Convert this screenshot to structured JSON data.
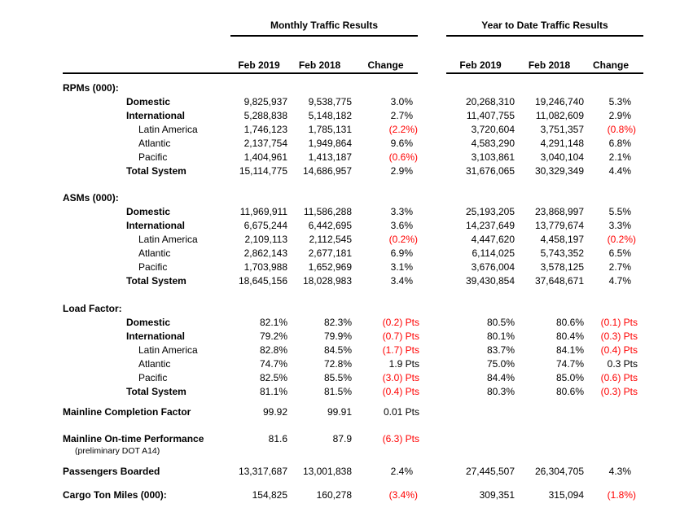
{
  "report": {
    "monthly_title": "Monthly Traffic Results",
    "ytd_title": "Year to Date Traffic Results",
    "columns": [
      "Feb 2019",
      "Feb 2018",
      "Change"
    ],
    "colors": {
      "negative": "#ff0000",
      "text": "#000000"
    },
    "sections": [
      {
        "title": "RPMs (000):",
        "rows": [
          {
            "label": "Domestic",
            "emphasis": true,
            "monthly": [
              "9,825,937",
              "9,538,775",
              "3.0%"
            ],
            "ytd": [
              "20,268,310",
              "19,246,740",
              "5.3%"
            ]
          },
          {
            "label": "International",
            "emphasis": true,
            "monthly": [
              "5,288,838",
              "5,148,182",
              "2.7%"
            ],
            "ytd": [
              "11,407,755",
              "11,082,609",
              "2.9%"
            ]
          },
          {
            "label": "Latin America",
            "emphasis": false,
            "monthly": [
              "1,746,123",
              "1,785,131",
              "(2.2%)"
            ],
            "ytd": [
              "3,720,604",
              "3,751,357",
              "(0.8%)"
            ]
          },
          {
            "label": "Atlantic",
            "emphasis": false,
            "monthly": [
              "2,137,754",
              "1,949,864",
              "9.6%"
            ],
            "ytd": [
              "4,583,290",
              "4,291,148",
              "6.8%"
            ]
          },
          {
            "label": "Pacific",
            "emphasis": false,
            "monthly": [
              "1,404,961",
              "1,413,187",
              "(0.6%)"
            ],
            "ytd": [
              "3,103,861",
              "3,040,104",
              "2.1%"
            ]
          },
          {
            "label": "Total System",
            "emphasis": true,
            "monthly": [
              "15,114,775",
              "14,686,957",
              "2.9%"
            ],
            "ytd": [
              "31,676,065",
              "30,329,349",
              "4.4%"
            ]
          }
        ]
      },
      {
        "title": "ASMs (000):",
        "rows": [
          {
            "label": "Domestic",
            "emphasis": true,
            "monthly": [
              "11,969,911",
              "11,586,288",
              "3.3%"
            ],
            "ytd": [
              "25,193,205",
              "23,868,997",
              "5.5%"
            ]
          },
          {
            "label": "International",
            "emphasis": true,
            "monthly": [
              "6,675,244",
              "6,442,695",
              "3.6%"
            ],
            "ytd": [
              "14,237,649",
              "13,779,674",
              "3.3%"
            ]
          },
          {
            "label": "Latin America",
            "emphasis": false,
            "monthly": [
              "2,109,113",
              "2,112,545",
              "(0.2%)"
            ],
            "ytd": [
              "4,447,620",
              "4,458,197",
              "(0.2%)"
            ]
          },
          {
            "label": "Atlantic",
            "emphasis": false,
            "monthly": [
              "2,862,143",
              "2,677,181",
              "6.9%"
            ],
            "ytd": [
              "6,114,025",
              "5,743,352",
              "6.5%"
            ]
          },
          {
            "label": "Pacific",
            "emphasis": false,
            "monthly": [
              "1,703,988",
              "1,652,969",
              "3.1%"
            ],
            "ytd": [
              "3,676,004",
              "3,578,125",
              "2.7%"
            ]
          },
          {
            "label": "Total System",
            "emphasis": true,
            "monthly": [
              "18,645,156",
              "18,028,983",
              "3.4%"
            ],
            "ytd": [
              "39,430,854",
              "37,648,671",
              "4.7%"
            ]
          }
        ]
      },
      {
        "title": "Load Factor:",
        "rows": [
          {
            "label": "Domestic",
            "emphasis": true,
            "monthly": [
              "82.1%",
              "82.3%",
              "(0.2) Pts"
            ],
            "ytd": [
              "80.5%",
              "80.6%",
              "(0.1) Pts"
            ]
          },
          {
            "label": "International",
            "emphasis": true,
            "monthly": [
              "79.2%",
              "79.9%",
              "(0.7) Pts"
            ],
            "ytd": [
              "80.1%",
              "80.4%",
              "(0.3) Pts"
            ]
          },
          {
            "label": "Latin America",
            "emphasis": false,
            "monthly": [
              "82.8%",
              "84.5%",
              "(1.7) Pts"
            ],
            "ytd": [
              "83.7%",
              "84.1%",
              "(0.4) Pts"
            ]
          },
          {
            "label": "Atlantic",
            "emphasis": false,
            "monthly": [
              "74.7%",
              "72.8%",
              "1.9 Pts"
            ],
            "ytd": [
              "75.0%",
              "74.7%",
              "0.3 Pts"
            ]
          },
          {
            "label": "Pacific",
            "emphasis": false,
            "monthly": [
              "82.5%",
              "85.5%",
              "(3.0) Pts"
            ],
            "ytd": [
              "84.4%",
              "85.0%",
              "(0.6) Pts"
            ]
          },
          {
            "label": "Total System",
            "emphasis": true,
            "monthly": [
              "81.1%",
              "81.5%",
              "(0.4) Pts"
            ],
            "ytd": [
              "80.3%",
              "80.6%",
              "(0.3) Pts"
            ]
          }
        ]
      }
    ],
    "metrics": [
      {
        "label": "Mainline Completion Factor",
        "sublabel": "",
        "monthly": [
          "99.92",
          "99.91",
          "0.01 Pts"
        ],
        "ytd": [
          "",
          "",
          ""
        ]
      },
      {
        "label": "Mainline On-time Performance",
        "sublabel": "(preliminary DOT A14)",
        "monthly": [
          "81.6",
          "87.9",
          "(6.3) Pts"
        ],
        "ytd": [
          "",
          "",
          ""
        ]
      },
      {
        "label": "Passengers Boarded",
        "sublabel": "",
        "monthly": [
          "13,317,687",
          "13,001,838",
          "2.4%"
        ],
        "ytd": [
          "27,445,507",
          "26,304,705",
          "4.3%"
        ]
      },
      {
        "label": "Cargo Ton Miles (000):",
        "sublabel": "",
        "monthly": [
          "154,825",
          "160,278",
          "(3.4%)"
        ],
        "ytd": [
          "309,351",
          "315,094",
          "(1.8%)"
        ]
      }
    ]
  }
}
